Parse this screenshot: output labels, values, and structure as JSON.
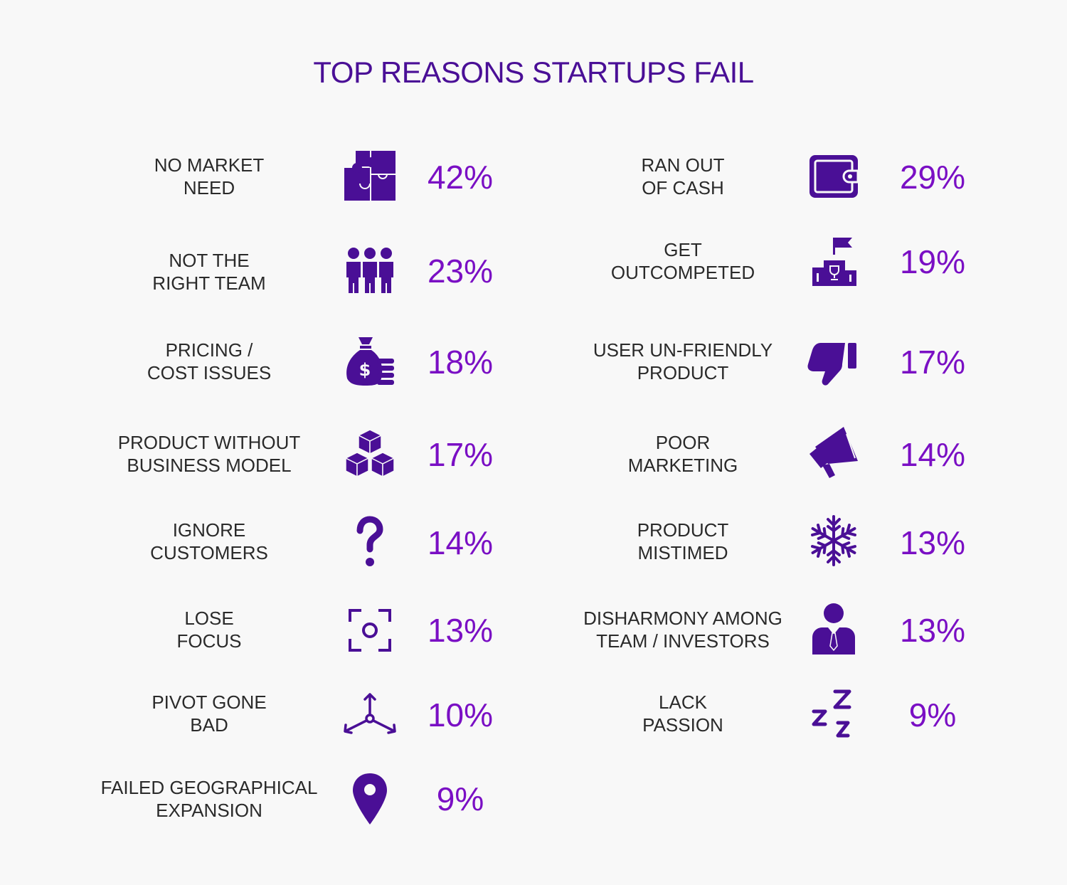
{
  "title": "TOP REASONS STARTUPS FAIL",
  "colors": {
    "title": "#4a0f96",
    "icon": "#4a0f96",
    "percent": "#7a0fc4",
    "label": "#2a2a2a",
    "background": "#f8f8f8"
  },
  "left": [
    {
      "line1": "NO MARKET",
      "line2": "NEED",
      "percent": "42%",
      "icon": "puzzle-icon"
    },
    {
      "line1": "NOT THE",
      "line2": "RIGHT TEAM",
      "percent": "23%",
      "icon": "team-icon"
    },
    {
      "line1": "PRICING /",
      "line2": "COST ISSUES",
      "percent": "18%",
      "icon": "money-bag-icon"
    },
    {
      "line1": "PRODUCT WITHOUT",
      "line2": "BUSINESS MODEL",
      "percent": "17%",
      "icon": "cubes-icon"
    },
    {
      "line1": "IGNORE",
      "line2": "CUSTOMERS",
      "percent": "14%",
      "icon": "question-mark-icon"
    },
    {
      "line1": "LOSE",
      "line2": "FOCUS",
      "percent": "13%",
      "icon": "focus-icon"
    },
    {
      "line1": "PIVOT GONE",
      "line2": "BAD",
      "percent": "10%",
      "icon": "pivot-arrows-icon"
    },
    {
      "line1": "FAILED GEOGRAPHICAL",
      "line2": "EXPANSION",
      "percent": "9%",
      "icon": "location-pin-icon"
    }
  ],
  "right": [
    {
      "line1": "RAN OUT",
      "line2": "OF CASH",
      "percent": "29%",
      "icon": "wallet-icon"
    },
    {
      "line1": "GET",
      "line2": "OUTCOMPETED",
      "percent": "19%",
      "icon": "podium-icon"
    },
    {
      "line1": "USER UN-FRIENDLY",
      "line2": "PRODUCT",
      "percent": "17%",
      "icon": "thumbs-down-icon"
    },
    {
      "line1": "POOR",
      "line2": "MARKETING",
      "percent": "14%",
      "icon": "megaphone-icon"
    },
    {
      "line1": "PRODUCT",
      "line2": "MISTIMED",
      "percent": "13%",
      "icon": "snowflake-icon"
    },
    {
      "line1": "DISHARMONY AMONG",
      "line2": "TEAM / INVESTORS",
      "percent": "13%",
      "icon": "businessman-icon"
    },
    {
      "line1": "LACK",
      "line2": "PASSION",
      "percent": "9%",
      "icon": "sleep-icon"
    }
  ]
}
